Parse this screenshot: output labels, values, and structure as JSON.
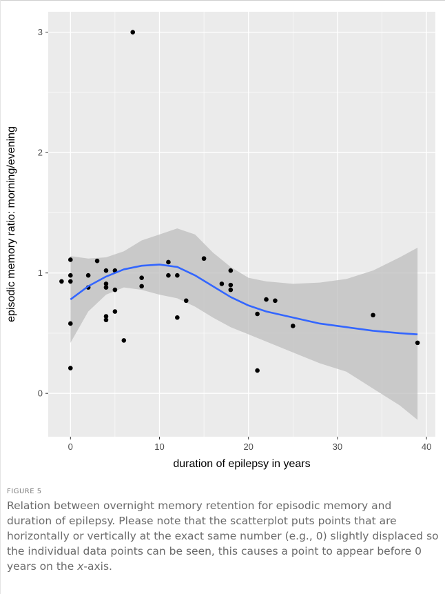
{
  "chart_data": {
    "type": "scatter",
    "xlabel": "duration of epilepsy in years",
    "ylabel": "episodic memory ratio: morning/evening",
    "xlim": [
      -2.5,
      41
    ],
    "ylim": [
      -0.36,
      3.17
    ],
    "x_ticks": [
      0,
      10,
      20,
      30,
      40
    ],
    "y_ticks": [
      0,
      1,
      2,
      3
    ],
    "grid": true,
    "background": "#ebebeb",
    "grid_color": "#ffffff",
    "point_color": "#000000",
    "smooth_color": "#3366ff",
    "band_color": "#bdbdbd",
    "points": [
      {
        "x": -1.0,
        "y": 0.93
      },
      {
        "x": 0.0,
        "y": 1.11
      },
      {
        "x": 0.0,
        "y": 0.98
      },
      {
        "x": 0.0,
        "y": 0.93
      },
      {
        "x": 0.0,
        "y": 0.58
      },
      {
        "x": 0.0,
        "y": 0.21
      },
      {
        "x": 2.0,
        "y": 0.98
      },
      {
        "x": 2.0,
        "y": 0.88
      },
      {
        "x": 3.0,
        "y": 1.1
      },
      {
        "x": 4.0,
        "y": 1.02
      },
      {
        "x": 4.0,
        "y": 0.91
      },
      {
        "x": 4.0,
        "y": 0.88
      },
      {
        "x": 4.0,
        "y": 0.64
      },
      {
        "x": 4.0,
        "y": 0.61
      },
      {
        "x": 5.0,
        "y": 1.02
      },
      {
        "x": 5.0,
        "y": 0.86
      },
      {
        "x": 5.0,
        "y": 0.68
      },
      {
        "x": 6.0,
        "y": 0.44
      },
      {
        "x": 7.0,
        "y": 3.0
      },
      {
        "x": 8.0,
        "y": 0.96
      },
      {
        "x": 8.0,
        "y": 0.89
      },
      {
        "x": 11.0,
        "y": 1.09
      },
      {
        "x": 11.0,
        "y": 0.98
      },
      {
        "x": 12.0,
        "y": 0.98
      },
      {
        "x": 12.0,
        "y": 0.63
      },
      {
        "x": 13.0,
        "y": 0.77
      },
      {
        "x": 15.0,
        "y": 1.12
      },
      {
        "x": 17.0,
        "y": 0.91
      },
      {
        "x": 18.0,
        "y": 1.02
      },
      {
        "x": 18.0,
        "y": 0.9
      },
      {
        "x": 18.0,
        "y": 0.86
      },
      {
        "x": 21.0,
        "y": 0.66
      },
      {
        "x": 21.0,
        "y": 0.19
      },
      {
        "x": 22.0,
        "y": 0.78
      },
      {
        "x": 23.0,
        "y": 0.77
      },
      {
        "x": 25.0,
        "y": 0.56
      },
      {
        "x": 34.0,
        "y": 0.65
      },
      {
        "x": 39.0,
        "y": 0.42
      }
    ],
    "smooth": [
      {
        "x": 0,
        "y": 0.78,
        "lo": 0.42,
        "hi": 1.14
      },
      {
        "x": 2,
        "y": 0.89,
        "lo": 0.68,
        "hi": 1.12
      },
      {
        "x": 4,
        "y": 0.97,
        "lo": 0.82,
        "hi": 1.13
      },
      {
        "x": 6,
        "y": 1.03,
        "lo": 0.88,
        "hi": 1.18
      },
      {
        "x": 8,
        "y": 1.06,
        "lo": 0.86,
        "hi": 1.27
      },
      {
        "x": 10,
        "y": 1.07,
        "lo": 0.82,
        "hi": 1.32
      },
      {
        "x": 12,
        "y": 1.05,
        "lo": 0.79,
        "hi": 1.37
      },
      {
        "x": 14,
        "y": 0.98,
        "lo": 0.72,
        "hi": 1.32
      },
      {
        "x": 16,
        "y": 0.89,
        "lo": 0.63,
        "hi": 1.17
      },
      {
        "x": 18,
        "y": 0.8,
        "lo": 0.55,
        "hi": 1.05
      },
      {
        "x": 20,
        "y": 0.73,
        "lo": 0.49,
        "hi": 0.96
      },
      {
        "x": 22,
        "y": 0.68,
        "lo": 0.43,
        "hi": 0.93
      },
      {
        "x": 25,
        "y": 0.63,
        "lo": 0.34,
        "hi": 0.91
      },
      {
        "x": 28,
        "y": 0.58,
        "lo": 0.25,
        "hi": 0.92
      },
      {
        "x": 31,
        "y": 0.55,
        "lo": 0.18,
        "hi": 0.95
      },
      {
        "x": 34,
        "y": 0.52,
        "lo": 0.04,
        "hi": 1.02
      },
      {
        "x": 37,
        "y": 0.5,
        "lo": -0.1,
        "hi": 1.13
      },
      {
        "x": 39,
        "y": 0.49,
        "lo": -0.22,
        "hi": 1.21
      }
    ]
  },
  "figure": {
    "label": "FIGURE 5",
    "caption_part1": "Relation between overnight memory retention for episodic memory and duration of epilepsy. Please note that the scatterplot puts points that are horizontally or vertically at the exact same number (e.g., 0) slightly displaced so the individual data points can be seen, this causes a point to appear before 0 years on the ",
    "caption_italic": "x",
    "caption_part2": "-axis."
  }
}
